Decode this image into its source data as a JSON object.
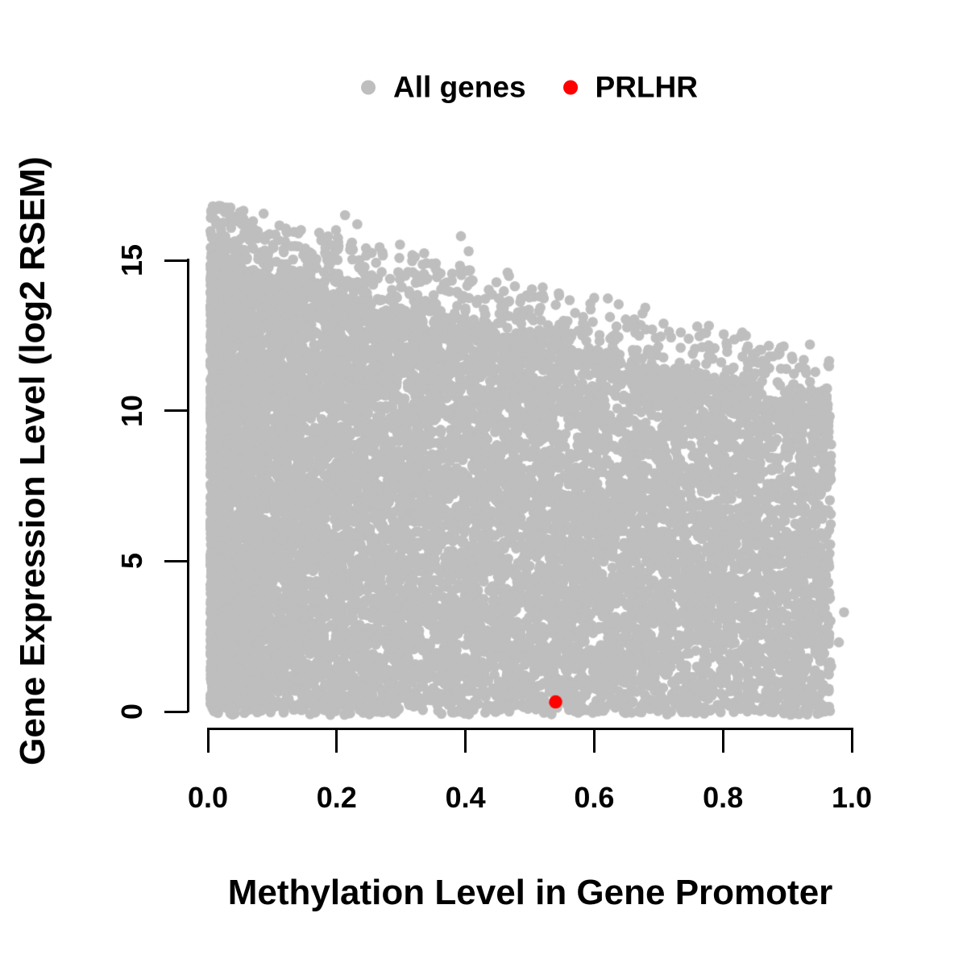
{
  "chart_data": {
    "type": "scatter",
    "title": "",
    "xlabel": "Methylation Level in Gene Promoter",
    "ylabel": "Gene Expression Level (log2 RSEM)",
    "xlim": [
      0,
      1.0
    ],
    "ylim": [
      0,
      16.9
    ],
    "x_ticks": [
      "0.0",
      "0.2",
      "0.4",
      "0.6",
      "0.8",
      "1.0"
    ],
    "x_tick_values": [
      0,
      0.2,
      0.4,
      0.6,
      0.8,
      1.0
    ],
    "y_ticks": [
      "0",
      "5",
      "10",
      "15"
    ],
    "y_tick_values": [
      0,
      5,
      10,
      15
    ],
    "grid": false,
    "background": "#FFFFFF",
    "text_color": "#000000",
    "legend_position": "top-center",
    "legend": [
      {
        "label": "All genes",
        "color": "#BEBEBE",
        "marker": "circle"
      },
      {
        "label": "PRLHR",
        "color": "#FF0000",
        "marker": "circle"
      }
    ],
    "series": [
      {
        "name": "All genes",
        "color": "#BEBEBE",
        "marker_radius_px": 6.3,
        "representation": "procedural-cloud",
        "description": "~13000 genes; dense solid cloud, densest at low methylation; upper expression envelope declines from ~16.8 at methylation 0 to ~12 at methylation 0.95; solid band along y=0; cloud spans x 0.004-0.968",
        "n_points": 13000,
        "seed": 42,
        "x_min": 0.004,
        "x_max": 0.968,
        "x_skew": 1.5,
        "body_top": {
          "intercept": 14.2,
          "slope": -4.6
        },
        "upper_envelope": {
          "intercept": 16.9,
          "slope": -5.4
        },
        "tail_fraction": 0.12,
        "tail_power": 2.8,
        "outliers": [
          [
            0.035,
            16.75
          ],
          [
            0.05,
            16.6
          ],
          [
            0.07,
            16.3
          ],
          [
            0.213,
            16.5
          ],
          [
            0.232,
            16.2
          ],
          [
            0.393,
            15.8
          ],
          [
            0.405,
            15.3
          ],
          [
            0.52,
            14.1
          ],
          [
            0.545,
            13.9
          ],
          [
            0.6,
            13.75
          ],
          [
            0.69,
            12.7
          ],
          [
            0.76,
            12.8
          ],
          [
            0.83,
            12.6
          ],
          [
            0.89,
            12.1
          ],
          [
            0.935,
            12.2
          ],
          [
            0.988,
            3.3
          ],
          [
            0.968,
            1.5
          ],
          [
            0.98,
            2.3
          ]
        ]
      },
      {
        "name": "PRLHR",
        "color": "#FF0000",
        "marker_radius_px": 8.3,
        "points": [
          [
            0.54,
            0.32
          ]
        ]
      }
    ]
  }
}
